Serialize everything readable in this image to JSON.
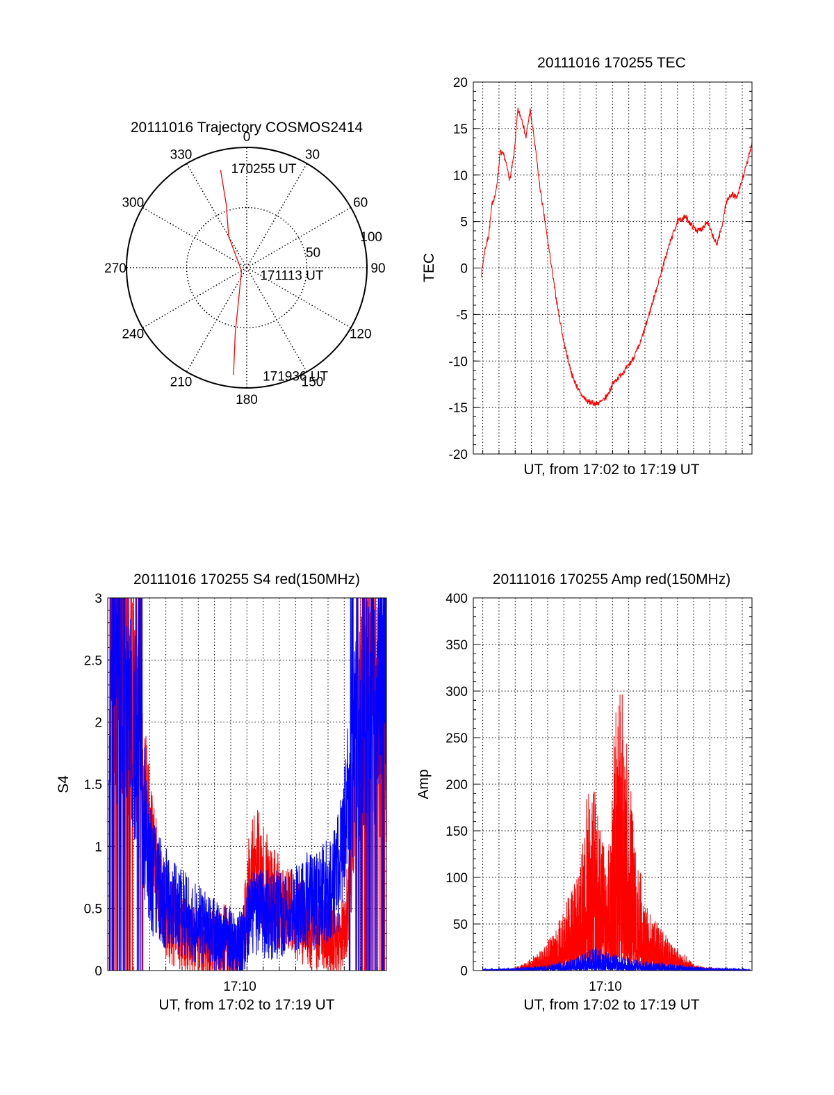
{
  "chart_data": [
    {
      "type": "polar",
      "title": "20111016 Trajectory COSMOS2414",
      "angle_ticks": [
        "0",
        "30",
        "60",
        "90",
        "120",
        "150",
        "180",
        "210",
        "240",
        "270",
        "300",
        "330"
      ],
      "radial_ticks": [
        "50",
        "100"
      ],
      "grid": true,
      "series": [
        {
          "color": "#ff0000",
          "points": [
            {
              "azimuth": 345,
              "radius": 84
            },
            {
              "azimuth": 342,
              "radius": 55
            },
            {
              "azimuth": 330,
              "radius": 30
            },
            {
              "azimuth": 240,
              "radius": 5
            },
            {
              "azimuth": 195,
              "radius": 25
            },
            {
              "azimuth": 190,
              "radius": 55
            },
            {
              "azimuth": 187,
              "radius": 90
            }
          ]
        }
      ],
      "annotations": [
        {
          "text": "170255 UT",
          "azimuth": 355,
          "radius": 83
        },
        {
          "text": "171113 UT",
          "azimuth": 110,
          "radius": 18
        },
        {
          "text": "171936 UT",
          "azimuth": 168,
          "radius": 92
        }
      ]
    },
    {
      "type": "line",
      "title": "20111016 170255 TEC",
      "xlabel": "UT, from 17:02 to 17:19 UT",
      "ylabel": "TEC",
      "xlim": [
        "17:02:25",
        "17:19:36"
      ],
      "ylim": [
        -20,
        20
      ],
      "yticks": [
        -20,
        -15,
        -10,
        -5,
        0,
        5,
        10,
        15,
        20
      ],
      "grid": true,
      "series": [
        {
          "color": "#ff0000",
          "x": [
            "17:02:55",
            "17:03:08",
            "17:03:22",
            "17:03:35",
            "17:03:48",
            "17:04:05",
            "17:04:20",
            "17:04:40",
            "17:04:55",
            "17:05:10",
            "17:05:25",
            "17:05:40",
            "17:05:55",
            "17:06:10",
            "17:06:30",
            "17:07:00",
            "17:07:30",
            "17:08:00",
            "17:08:30",
            "17:09:00",
            "17:09:30",
            "17:10:00",
            "17:10:25",
            "17:10:45",
            "17:11:00",
            "17:11:30",
            "17:12:00",
            "17:12:20",
            "17:12:40",
            "17:13:00",
            "17:13:30",
            "17:14:00",
            "17:14:30",
            "17:15:00",
            "17:15:30",
            "17:15:55",
            "17:16:15",
            "17:16:30",
            "17:16:50",
            "17:17:10",
            "17:17:25",
            "17:17:45",
            "17:18:00",
            "17:18:20",
            "17:18:40",
            "17:19:00",
            "17:19:20",
            "17:19:36"
          ],
          "values": [
            -0.7,
            2.0,
            3.5,
            7.0,
            8.0,
            12.5,
            12.0,
            9.5,
            12.0,
            17.0,
            16.0,
            14.0,
            17.0,
            14.0,
            9.0,
            3.0,
            -3.0,
            -8.0,
            -11.5,
            -13.5,
            -14.4,
            -14.6,
            -14.3,
            -13.5,
            -12.5,
            -11.5,
            -10.5,
            -9.5,
            -8.3,
            -6.5,
            -3.5,
            -0.5,
            2.5,
            5.0,
            5.5,
            4.5,
            4.0,
            4.2,
            5.0,
            3.5,
            2.5,
            4.5,
            7.0,
            8.0,
            7.5,
            9.5,
            11.5,
            13.5
          ]
        }
      ]
    },
    {
      "type": "line",
      "title": "20111016 170255 S4 red(150MHz)",
      "xlabel": "UT, from 17:02 to 17:19 UT",
      "ylabel": "S4",
      "xticklabels": [
        "17:10"
      ],
      "xlim": [
        "17:02:25",
        "17:19:36"
      ],
      "ylim": [
        0,
        3
      ],
      "yticks": [
        0,
        0.5,
        1,
        1.5,
        2,
        2.5,
        3
      ],
      "grid": true,
      "series": [
        {
          "color": "#ff0000",
          "x": [
            "17:02:30",
            "17:03:30",
            "17:04:20",
            "17:04:50",
            "17:05:10",
            "17:05:40",
            "17:06:10",
            "17:06:40",
            "17:07:10",
            "17:07:40",
            "17:08:10",
            "17:08:40",
            "17:09:10",
            "17:09:40",
            "17:10:10",
            "17:10:40",
            "17:11:00",
            "17:11:20",
            "17:11:40",
            "17:12:10",
            "17:12:40",
            "17:13:10",
            "17:13:40",
            "17:14:10",
            "17:14:40",
            "17:15:10",
            "17:15:40",
            "17:16:10",
            "17:16:40",
            "17:17:10",
            "17:17:40",
            "17:18:10",
            "17:18:40",
            "17:19:10",
            "17:19:36"
          ],
          "values": [
            2.6,
            2.4,
            1.8,
            1.2,
            0.9,
            0.6,
            0.4,
            0.35,
            0.3,
            0.25,
            0.2,
            0.2,
            0.22,
            0.25,
            0.2,
            0.18,
            0.5,
            0.9,
            0.85,
            0.7,
            0.6,
            0.5,
            0.45,
            0.4,
            0.35,
            0.3,
            0.3,
            0.25,
            0.2,
            0.5,
            1.5,
            2.2,
            2.5,
            2.0,
            1.8
          ]
        },
        {
          "color": "#0000ff",
          "x": [
            "17:02:30",
            "17:03:30",
            "17:04:20",
            "17:04:50",
            "17:05:10",
            "17:05:40",
            "17:06:10",
            "17:06:40",
            "17:07:10",
            "17:07:40",
            "17:08:10",
            "17:08:40",
            "17:09:10",
            "17:09:40",
            "17:10:10",
            "17:10:40",
            "17:11:00",
            "17:11:20",
            "17:11:40",
            "17:12:10",
            "17:12:40",
            "17:13:10",
            "17:13:40",
            "17:14:10",
            "17:14:40",
            "17:15:10",
            "17:15:40",
            "17:16:10",
            "17:16:40",
            "17:17:10",
            "17:17:40",
            "17:18:10",
            "17:18:40",
            "17:19:10",
            "17:19:36"
          ],
          "values": [
            2.5,
            2.2,
            1.7,
            1.0,
            0.75,
            0.65,
            0.55,
            0.5,
            0.45,
            0.4,
            0.35,
            0.3,
            0.28,
            0.25,
            0.22,
            0.2,
            0.35,
            0.45,
            0.45,
            0.45,
            0.45,
            0.45,
            0.5,
            0.5,
            0.55,
            0.55,
            0.6,
            0.65,
            0.8,
            1.3,
            1.8,
            2.0,
            2.1,
            2.2,
            2.0
          ]
        }
      ]
    },
    {
      "type": "line",
      "title": "20111016 170255 Amp red(150MHz)",
      "xlabel": "UT, from 17:02 to 17:19 UT",
      "ylabel": "Amp",
      "xticklabels": [
        "17:10"
      ],
      "xlim": [
        "17:02:25",
        "17:19:36"
      ],
      "ylim": [
        0,
        400
      ],
      "yticks": [
        0,
        50,
        100,
        150,
        200,
        250,
        300,
        350,
        400
      ],
      "grid": true,
      "series": [
        {
          "color": "#ff0000",
          "x": [
            "17:03:00",
            "17:04:00",
            "17:05:00",
            "17:05:30",
            "17:06:00",
            "17:06:30",
            "17:07:00",
            "17:07:30",
            "17:08:00",
            "17:08:30",
            "17:09:00",
            "17:09:20",
            "17:09:40",
            "17:10:00",
            "17:10:20",
            "17:10:40",
            "17:11:00",
            "17:11:20",
            "17:11:40",
            "17:12:00",
            "17:12:20",
            "17:12:40",
            "17:13:00",
            "17:13:30",
            "17:14:00",
            "17:14:30",
            "17:15:00",
            "17:15:30",
            "17:16:00",
            "17:17:00",
            "17:18:00",
            "17:19:30"
          ],
          "values": [
            0,
            0,
            2,
            5,
            10,
            15,
            25,
            35,
            50,
            70,
            90,
            130,
            180,
            140,
            110,
            90,
            170,
            260,
            230,
            170,
            120,
            90,
            60,
            45,
            35,
            25,
            18,
            12,
            5,
            2,
            1,
            0
          ]
        },
        {
          "color": "#0000ff",
          "x": [
            "17:03:00",
            "17:05:00",
            "17:06:00",
            "17:07:00",
            "17:08:00",
            "17:09:00",
            "17:09:30",
            "17:10:00",
            "17:10:30",
            "17:11:00",
            "17:11:30",
            "17:12:00",
            "17:13:00",
            "17:14:00",
            "17:15:00",
            "17:16:00",
            "17:17:00",
            "17:19:30"
          ],
          "values": [
            1,
            2,
            3,
            5,
            8,
            12,
            18,
            20,
            16,
            14,
            12,
            10,
            8,
            6,
            5,
            3,
            2,
            1
          ]
        }
      ]
    }
  ]
}
